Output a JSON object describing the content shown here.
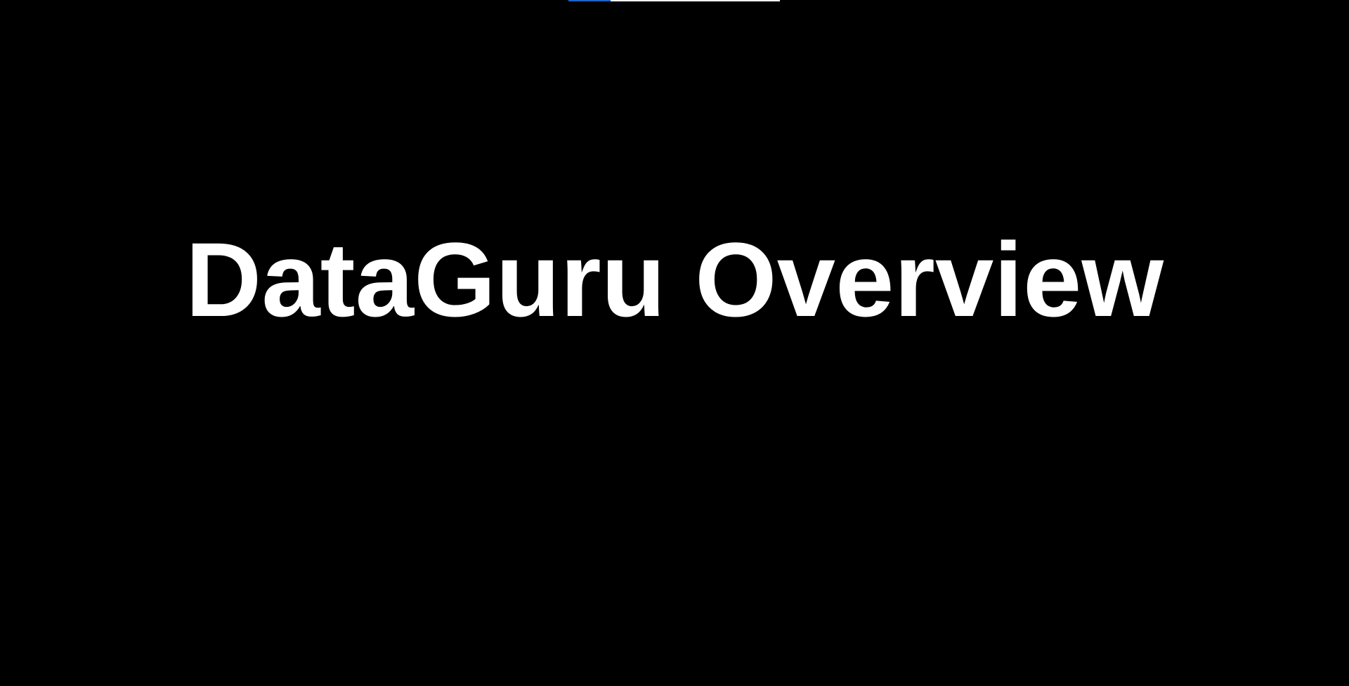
{
  "slide": {
    "title": "DataGuru Overview"
  },
  "progress": {
    "fraction": 0.2
  },
  "colors": {
    "background": "#000000",
    "title_text": "#ffffff",
    "progress_track": "#ffffff",
    "progress_fill": "#1e63c8"
  }
}
